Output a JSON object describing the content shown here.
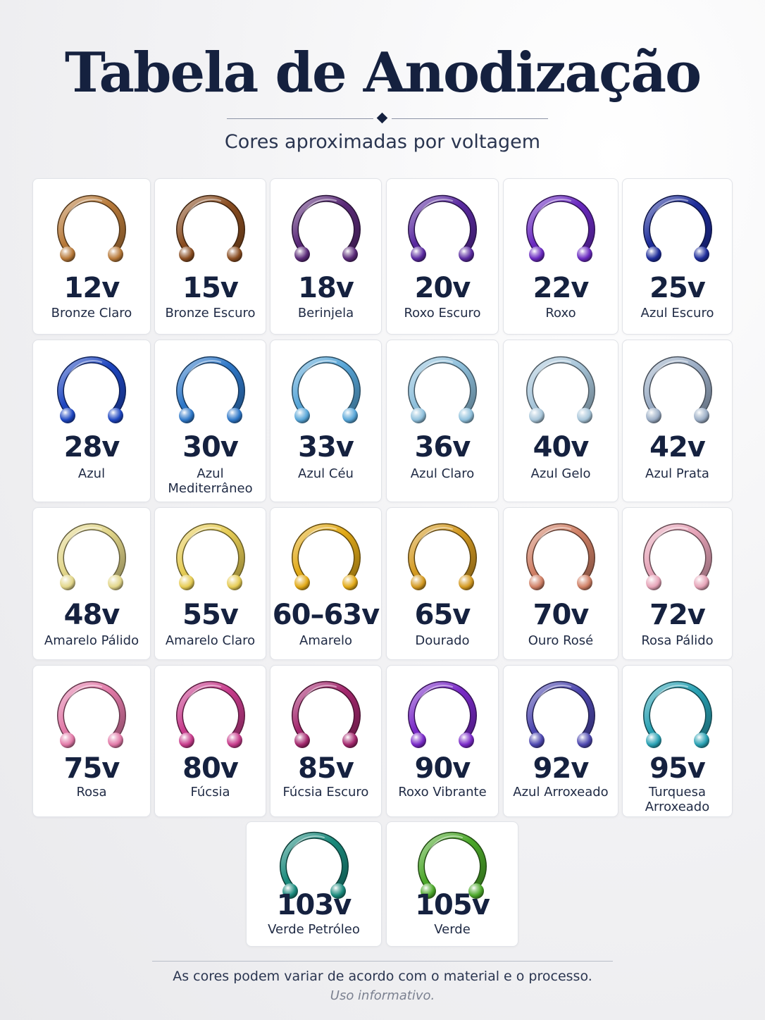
{
  "header": {
    "title": "Tabela de Anodização",
    "subtitle": "Cores aproximadas por voltagem"
  },
  "swatches": [
    {
      "voltage": "12v",
      "name": "Bronze Claro",
      "color": "#b87a3a"
    },
    {
      "voltage": "15v",
      "name": "Bronze Escuro",
      "color": "#8a4e22"
    },
    {
      "voltage": "18v",
      "name": "Berinjela",
      "color": "#5a2a78"
    },
    {
      "voltage": "20v",
      "name": "Roxo Escuro",
      "color": "#5a2aa0"
    },
    {
      "voltage": "22v",
      "name": "Roxo",
      "color": "#6a2ac0"
    },
    {
      "voltage": "25v",
      "name": "Azul Escuro",
      "color": "#1e2d9a"
    },
    {
      "voltage": "28v",
      "name": "Azul",
      "color": "#1e46c0"
    },
    {
      "voltage": "30v",
      "name": "Azul Mediterrâneo",
      "color": "#2f78c8"
    },
    {
      "voltage": "33v",
      "name": "Azul Céu",
      "color": "#58a6d8"
    },
    {
      "voltage": "36v",
      "name": "Azul Claro",
      "color": "#8fc0dc"
    },
    {
      "voltage": "40v",
      "name": "Azul Gelo",
      "color": "#a8c6da"
    },
    {
      "voltage": "42v",
      "name": "Azul Prata",
      "color": "#9caec6"
    },
    {
      "voltage": "48v",
      "name": "Amarelo Pálido",
      "color": "#e2d68a"
    },
    {
      "voltage": "55v",
      "name": "Amarelo Claro",
      "color": "#e6cc55"
    },
    {
      "voltage": "60–63v",
      "name": "Amarelo",
      "color": "#e2aa18"
    },
    {
      "voltage": "65v",
      "name": "Dourado",
      "color": "#d49a22"
    },
    {
      "voltage": "70v",
      "name": "Ouro Rosé",
      "color": "#d08066"
    },
    {
      "voltage": "72v",
      "name": "Rosa Pálido",
      "color": "#e6a4b8"
    },
    {
      "voltage": "75v",
      "name": "Rosa",
      "color": "#e27aa8"
    },
    {
      "voltage": "80v",
      "name": "Fúcsia",
      "color": "#c83c8c"
    },
    {
      "voltage": "85v",
      "name": "Fúcsia Escuro",
      "color": "#a4286e"
    },
    {
      "voltage": "90v",
      "name": "Roxo Vibrante",
      "color": "#7a2ac8"
    },
    {
      "voltage": "92v",
      "name": "Azul Arroxeado",
      "color": "#4e48b0"
    },
    {
      "voltage": "95v",
      "name": "Turquesa Arroxeado",
      "color": "#2aa2b4"
    },
    {
      "voltage": "103v",
      "name": "Verde Petróleo",
      "color": "#1a8a7c"
    },
    {
      "voltage": "105v",
      "name": "Verde",
      "color": "#4ca82a"
    }
  ],
  "footer": {
    "note": "As cores podem variar de acordo com o material e o processo.",
    "disclaimer": "Uso informativo."
  }
}
